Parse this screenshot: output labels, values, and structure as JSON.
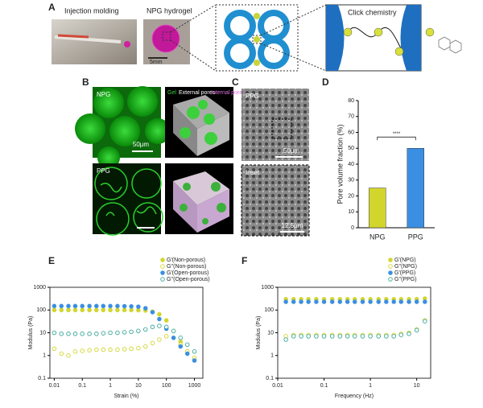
{
  "figure": {
    "panel_labels": [
      "A",
      "B",
      "C",
      "D",
      "E",
      "F"
    ],
    "a": {
      "injection": "Injection molding",
      "hydrogel": "NPG hydrogel",
      "scale": "5mm",
      "click": "Click chemistry"
    },
    "b": {
      "npg": "NPG",
      "ppg": "PPG",
      "scale": "50μm",
      "gel": "Gel",
      "external": "External pores",
      "internal": "Internal pores"
    },
    "c": {
      "ppg": "PPG",
      "scale": "50μm",
      "inset": "Inset",
      "inset_scale": "12.5μm"
    }
  },
  "chart_data": [
    {
      "type": "bar",
      "categories": [
        "NPG",
        "PPG"
      ],
      "values": [
        25,
        50
      ],
      "colors": [
        "#d2d62c",
        "#3b8fe2"
      ],
      "ylabel": "Pore volume fraction (%)",
      "ylim": [
        0,
        80
      ],
      "yticks": [
        0,
        10,
        20,
        30,
        40,
        50,
        60,
        70,
        80
      ],
      "annotation": "****"
    },
    {
      "type": "scatter",
      "xscale": "log",
      "yscale": "log",
      "xlabel": "Strain (%)",
      "ylabel": "Modulus (Pa)",
      "xlim": [
        0.007,
        2000
      ],
      "ylim": [
        0.1,
        1000
      ],
      "xticks": [
        0.01,
        0.1,
        1,
        10,
        100,
        1000
      ],
      "yticks": [
        0.1,
        1,
        10,
        100,
        1000
      ],
      "legend": "top-right",
      "x": [
        0.01,
        0.018,
        0.032,
        0.056,
        0.1,
        0.18,
        0.32,
        0.56,
        1,
        1.8,
        3.2,
        5.6,
        10,
        18,
        32,
        56,
        100,
        180,
        320,
        560,
        1000
      ],
      "series": [
        {
          "name": "G'(Non-porous)",
          "color": "#d2d62c",
          "marker": "filled",
          "values": [
            100,
            100,
            100,
            100,
            100,
            100,
            100,
            100,
            100,
            100,
            100,
            100,
            98,
            95,
            85,
            65,
            35,
            12,
            4,
            1.5,
            0.7
          ]
        },
        {
          "name": "G''(Non-porous)",
          "color": "#d2d62c",
          "marker": "open",
          "values": [
            2,
            1.2,
            1,
            1.5,
            1.6,
            1.7,
            1.8,
            1.8,
            1.8,
            1.8,
            1.9,
            2,
            2.1,
            2.5,
            3.5,
            5,
            7,
            6,
            3,
            1.5,
            0.8
          ]
        },
        {
          "name": "G'(Open-porous)",
          "color": "#3b8fe2",
          "marker": "filled",
          "values": [
            150,
            150,
            150,
            150,
            150,
            150,
            150,
            150,
            150,
            150,
            148,
            145,
            140,
            120,
            80,
            40,
            15,
            6,
            2.5,
            1.2,
            0.6
          ]
        },
        {
          "name": "G''(Open-porous)",
          "color": "#3aa89a",
          "marker": "open",
          "values": [
            10,
            9,
            9,
            9,
            9,
            9,
            9,
            9.5,
            10,
            10,
            10.5,
            11,
            12,
            14,
            18,
            20,
            18,
            12,
            6,
            3,
            1.5
          ]
        }
      ]
    },
    {
      "type": "scatter",
      "xscale": "log",
      "yscale": "log",
      "xlabel": "Frequency (Hz)",
      "ylabel": "Modulus (Pa)",
      "xlim": [
        0.01,
        20
      ],
      "ylim": [
        0.1,
        1000
      ],
      "xticks": [
        0.01,
        0.1,
        1,
        10
      ],
      "yticks": [
        0.1,
        1,
        10,
        100,
        1000
      ],
      "legend": "top-right",
      "x": [
        0.015,
        0.022,
        0.032,
        0.046,
        0.068,
        0.1,
        0.15,
        0.22,
        0.32,
        0.46,
        0.68,
        1,
        1.5,
        2.2,
        3.2,
        4.6,
        6.8,
        10,
        15
      ],
      "series": [
        {
          "name": "G'(NPG)",
          "color": "#d2d62c",
          "marker": "filled",
          "values": [
            300,
            300,
            300,
            300,
            300,
            300,
            300,
            300,
            300,
            300,
            300,
            300,
            300,
            300,
            300,
            300,
            300,
            300,
            320
          ]
        },
        {
          "name": "G''(NPG)",
          "color": "#d2d62c",
          "marker": "open",
          "values": [
            7,
            8,
            8,
            8,
            8,
            8,
            8,
            8,
            8,
            8,
            8,
            8,
            8,
            8,
            8,
            9,
            10,
            14,
            35
          ]
        },
        {
          "name": "G'(PPG)",
          "color": "#3b8fe2",
          "marker": "filled",
          "values": [
            230,
            230,
            230,
            230,
            230,
            230,
            230,
            230,
            230,
            230,
            230,
            230,
            230,
            230,
            230,
            230,
            230,
            230,
            230
          ]
        },
        {
          "name": "G''(PPG)",
          "color": "#3aa89a",
          "marker": "open",
          "values": [
            5,
            7,
            7,
            7,
            7,
            7,
            7,
            7,
            7,
            7,
            7,
            7,
            7,
            7,
            7,
            8,
            9,
            13,
            32
          ]
        }
      ]
    }
  ]
}
